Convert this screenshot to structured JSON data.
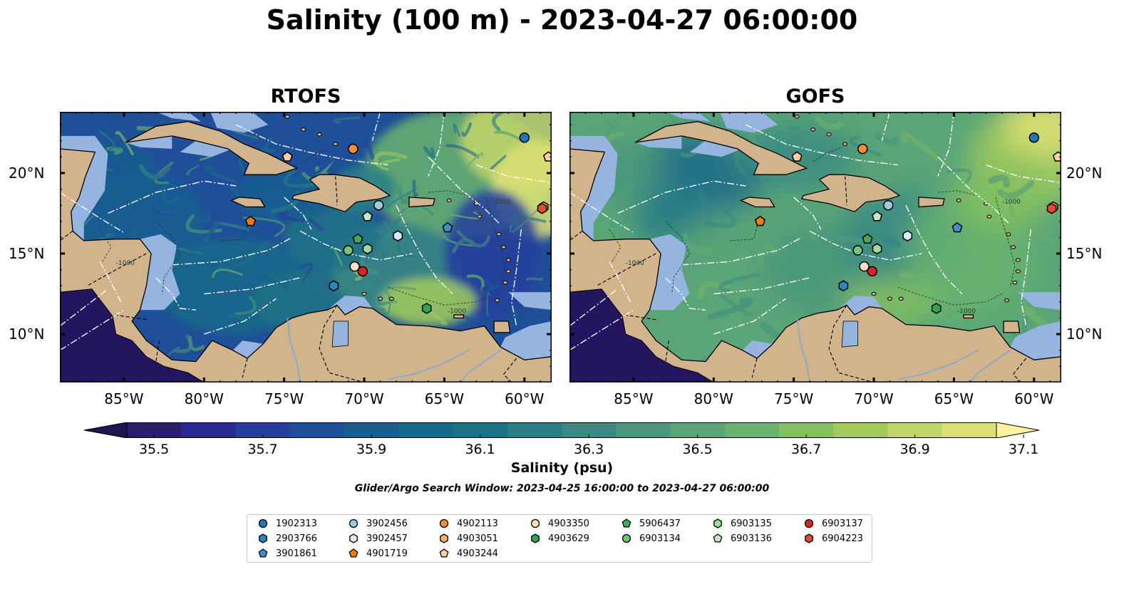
{
  "title": "Salinity (100 m) - 2023-04-27 06:00:00",
  "panels": [
    {
      "title": "RTOFS",
      "style": "eddy"
    },
    {
      "title": "GOFS",
      "style": "smooth"
    }
  ],
  "lon_ticks": [
    "85°W",
    "80°W",
    "75°W",
    "70°W",
    "65°W",
    "60°W"
  ],
  "lon_tick_values": [
    -85,
    -80,
    -75,
    -70,
    -65,
    -60
  ],
  "lat_ticks": [
    "20°N",
    "15°N",
    "10°N"
  ],
  "lat_tick_values": [
    20,
    15,
    10
  ],
  "extent": {
    "lon_min": -89,
    "lon_max": -58.3,
    "lat_min": 7,
    "lat_max": 23.8
  },
  "colorbar": {
    "label": "Salinity (psu)",
    "ticks": [
      "35.5",
      "35.7",
      "35.9",
      "36.1",
      "36.3",
      "36.5",
      "36.7",
      "36.9",
      "37.1"
    ],
    "levels": [
      35.5,
      35.6,
      35.7,
      35.8,
      35.9,
      36.0,
      36.1,
      36.2,
      36.3,
      36.4,
      36.5,
      36.6,
      36.7,
      36.8,
      36.9,
      37.0,
      37.1
    ],
    "colors": [
      "#2b1e6e",
      "#2b2a94",
      "#263f9c",
      "#1f4f98",
      "#185f90",
      "#15698a",
      "#1c7386",
      "#2a7f86",
      "#3a8a83",
      "#4a977d",
      "#5aa577",
      "#67b36f",
      "#84c062",
      "#a2cb5c",
      "#c1d66a",
      "#dde076",
      "#f5e98b"
    ],
    "under_color": "#1f144d",
    "over_color": "#fdf2a0",
    "extend": "both"
  },
  "search_window": "Glider/Argo Search Window: 2023-04-25 16:00:00 to 2023-04-27 06:00:00",
  "contour_label": "-1000",
  "floats": [
    {
      "id": "1902313",
      "marker": "circle",
      "color": "#1f77b4",
      "lon": -60.0,
      "lat": 22.2
    },
    {
      "id": "2903766",
      "marker": "hexagon",
      "color": "#2e86c1",
      "lon": -71.9,
      "lat": 13.0
    },
    {
      "id": "3901861",
      "marker": "pentagon",
      "color": "#3b8fd0",
      "lon": -64.8,
      "lat": 16.6
    },
    {
      "id": "3902456",
      "marker": "circle",
      "color": "#9ecae1",
      "lon": -69.1,
      "lat": 18.0
    },
    {
      "id": "3902457",
      "marker": "hexagon",
      "color": "#deebf7",
      "lon": -67.9,
      "lat": 16.1
    },
    {
      "id": "4901719",
      "marker": "pentagon",
      "color": "#f07c0f",
      "lon": -77.1,
      "lat": 17.0
    },
    {
      "id": "4902113",
      "marker": "circle",
      "color": "#fd8d3c",
      "lon": -70.7,
      "lat": 21.5
    },
    {
      "id": "4903051",
      "marker": "hexagon",
      "color": "#fdae6b",
      "lon": -58.8,
      "lat": 17.9
    },
    {
      "id": "4903244",
      "marker": "pentagon",
      "color": "#fdd0a2",
      "lon": -74.8,
      "lat": 21.0
    },
    {
      "id": "4903350",
      "marker": "circle",
      "color": "#fde0c5",
      "lon": -70.6,
      "lat": 14.2
    },
    {
      "id": "4903629",
      "marker": "hexagon",
      "color": "#31a354",
      "lon": -66.1,
      "lat": 11.6
    },
    {
      "id": "5906437",
      "marker": "pentagon",
      "color": "#41ab5d",
      "lon": -70.4,
      "lat": 15.9
    },
    {
      "id": "6903134",
      "marker": "circle",
      "color": "#74c476",
      "lon": -71.0,
      "lat": 15.2
    },
    {
      "id": "6903135",
      "marker": "hexagon",
      "color": "#a1d99b",
      "lon": -69.8,
      "lat": 15.3
    },
    {
      "id": "6903136",
      "marker": "pentagon",
      "color": "#c7e9c0",
      "lon": -69.8,
      "lat": 17.3
    },
    {
      "id": "6903137",
      "marker": "circle",
      "color": "#d62728",
      "lon": -70.1,
      "lat": 13.9
    },
    {
      "id": "6904223",
      "marker": "hexagon",
      "color": "#e34a33",
      "lon": -58.9,
      "lat": 17.8
    },
    {
      "id": "",
      "marker": "pentagon",
      "color": "#fdd0a2",
      "lon": -58.5,
      "lat": 21.0
    }
  ],
  "legend_columns": [
    [
      "1902313",
      "2903766",
      "3901861"
    ],
    [
      "3902456",
      "3902457",
      "4901719"
    ],
    [
      "4902113",
      "4903051",
      "4903244"
    ],
    [
      "4903350",
      "4903629"
    ],
    [
      "5906437",
      "6903134"
    ],
    [
      "6903135",
      "6903136"
    ],
    [
      "6903137",
      "6904223"
    ]
  ],
  "land_color": "#d2b48c",
  "shelf_color": "#96b4e0",
  "deep_color": "#23155f"
}
